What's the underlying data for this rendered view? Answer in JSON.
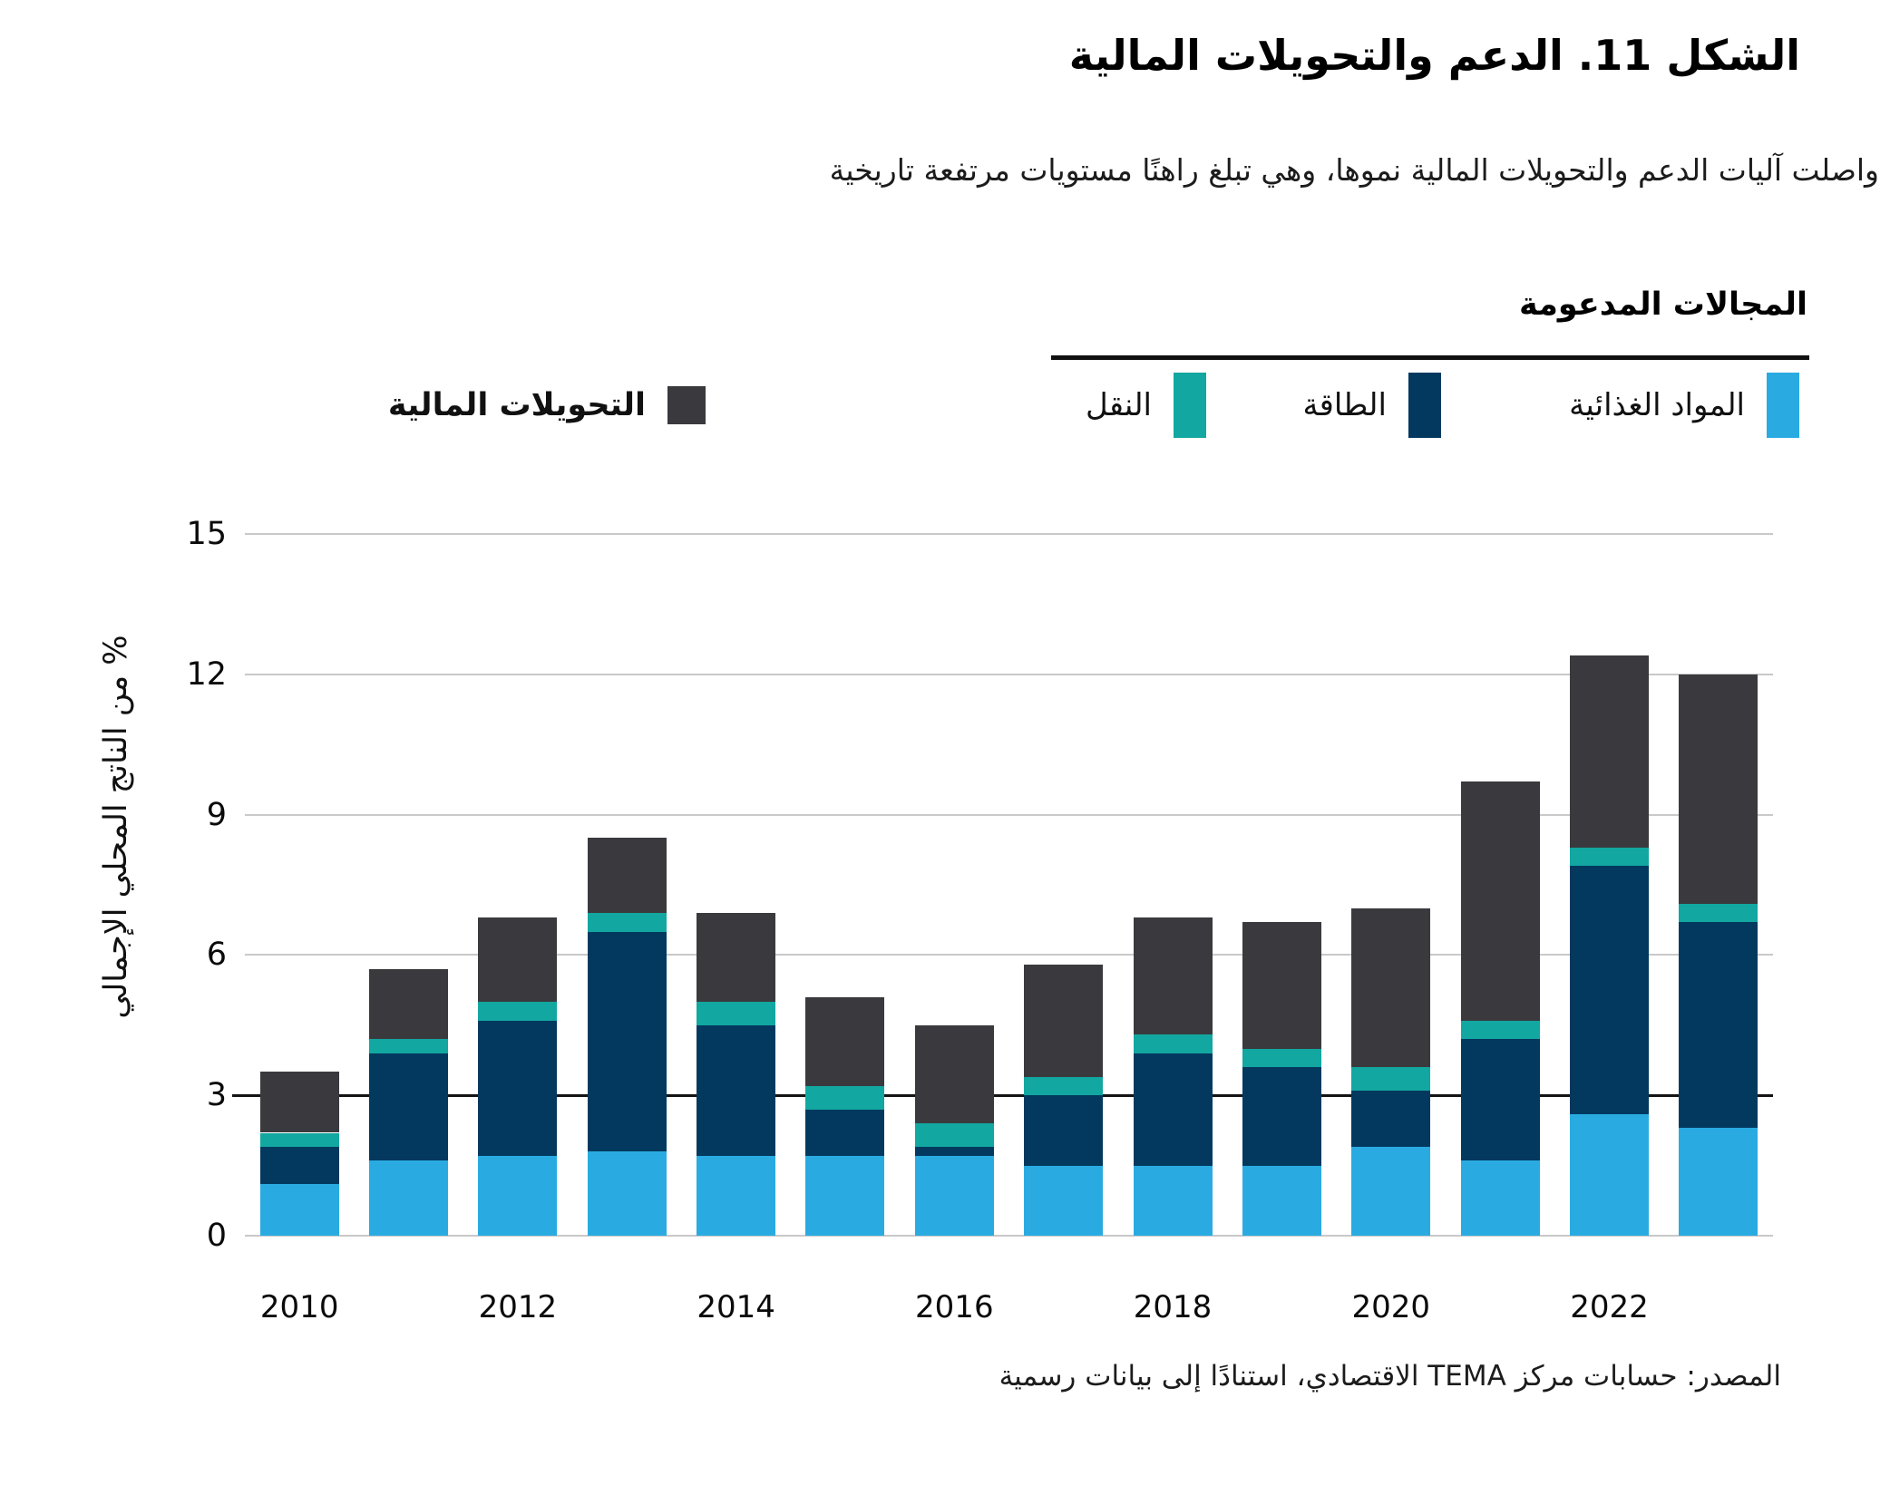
{
  "title": "الشكل 11. الدعم والتحويلات المالية",
  "subtitle": "واصلت آليات الدعم والتحويلات المالية نموها، وهي تبلغ راهنًا مستويات مرتفعة تاريخية",
  "legend": {
    "header": "المجالات المدعومة",
    "items": [
      {
        "key": "food",
        "label": "المواد الغذائية",
        "color": "#29ABE2"
      },
      {
        "key": "energy",
        "label": "الطاقة",
        "color": "#04395F"
      },
      {
        "key": "transport",
        "label": "النقل",
        "color": "#12A7A0"
      }
    ],
    "transfers_item": {
      "key": "transfers",
      "label": "التحويلات المالية",
      "color": "#3A3A3E"
    }
  },
  "source": "المصدر: حسابات مركز TEMA الاقتصادي، استنادًا إلى بيانات رسمية",
  "chart_data": {
    "type": "bar",
    "stacked": true,
    "title": "الشكل 11. الدعم والتحويلات المالية",
    "xlabel": "",
    "ylabel": "% من الناتج المحلي الإجمالي",
    "ylim": [
      0,
      15
    ],
    "yticks": [
      0,
      3,
      6,
      9,
      12,
      15
    ],
    "emphasized_gridline": 3,
    "grid": "horizontal",
    "legend_position": "top",
    "categories": [
      2010,
      2011,
      2012,
      2013,
      2014,
      2015,
      2016,
      2017,
      2018,
      2019,
      2020,
      2021,
      2022,
      2023
    ],
    "x_tick_labels": [
      "2010",
      "2012",
      "2014",
      "2016",
      "2018",
      "2020",
      "2022"
    ],
    "series": [
      {
        "name": "المواد الغذائية",
        "color": "#29ABE2",
        "values": [
          1.1,
          1.6,
          1.7,
          1.8,
          1.7,
          1.7,
          1.7,
          1.5,
          1.5,
          1.5,
          1.9,
          1.6,
          2.6,
          2.3
        ]
      },
      {
        "name": "الطاقة",
        "color": "#04395F",
        "values": [
          0.8,
          2.3,
          2.9,
          4.7,
          2.8,
          1.0,
          0.2,
          1.5,
          2.4,
          2.1,
          1.2,
          2.6,
          5.3,
          4.4
        ]
      },
      {
        "name": "النقل",
        "color": "#12A7A0",
        "values": [
          0.3,
          0.3,
          0.4,
          0.4,
          0.5,
          0.5,
          0.5,
          0.4,
          0.4,
          0.4,
          0.5,
          0.4,
          0.4,
          0.4
        ]
      },
      {
        "name": "التحويلات المالية",
        "color": "#3A3A3E",
        "values": [
          1.3,
          1.5,
          1.8,
          1.6,
          1.9,
          1.9,
          2.1,
          2.4,
          2.5,
          2.7,
          3.4,
          5.1,
          4.1,
          4.9
        ]
      }
    ],
    "totals": [
      3.5,
      5.7,
      6.8,
      8.5,
      6.9,
      5.1,
      4.5,
      5.8,
      6.8,
      6.7,
      7.0,
      9.7,
      12.4,
      12.0
    ]
  }
}
